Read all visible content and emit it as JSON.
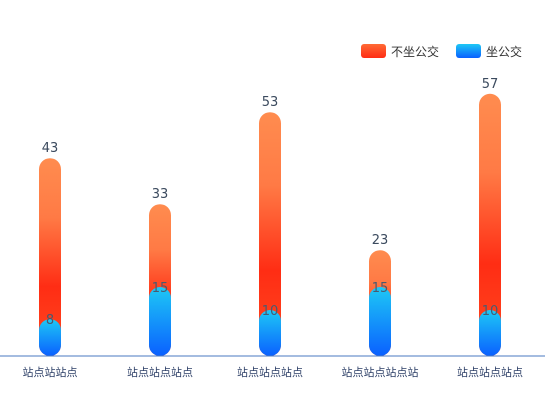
{
  "chart_data": {
    "type": "bar",
    "categories": [
      "站点站站点",
      "站点站点站点",
      "站点站点站点",
      "站点站点站点站",
      "站点站点站点"
    ],
    "series": [
      {
        "name": "不坐公交",
        "values": [
          43,
          33,
          53,
          23,
          57
        ],
        "color_top": "#ff8c4f",
        "color_mid": "#ff2d14"
      },
      {
        "name": "坐公交",
        "values": [
          8,
          15,
          10,
          15,
          10
        ],
        "color_top": "#1ec8f5",
        "color_bottom": "#0a60ff"
      }
    ],
    "ylim": [
      0,
      60
    ],
    "grid": false,
    "legend_position": "top-right",
    "axis_color": "#4a78c2"
  }
}
